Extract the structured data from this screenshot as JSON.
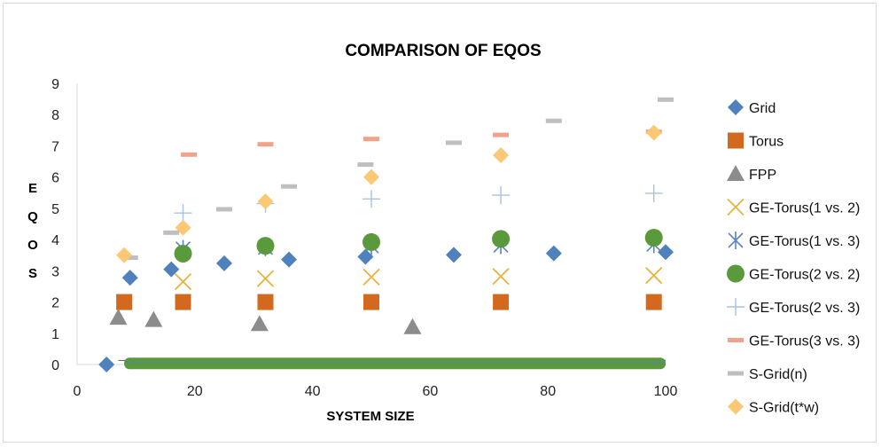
{
  "chart_data": {
    "type": "scatter",
    "title": "COMPARISON OF EQOS",
    "xlabel": "SYSTEM SIZE",
    "ylabel": "EQOS",
    "xlim": [
      0,
      100
    ],
    "ylim": [
      0,
      9
    ],
    "xticks": [
      "0",
      "20",
      "40",
      "60",
      "80",
      "100"
    ],
    "yticks": [
      "0",
      "1",
      "2",
      "3",
      "4",
      "5",
      "6",
      "7",
      "8",
      "9"
    ],
    "grid": false,
    "legend_position": "right",
    "series": [
      {
        "name": "Grid",
        "marker": "diamond",
        "color": "#4f81bd",
        "x": [
          5,
          9,
          16,
          25,
          36,
          49,
          64,
          81,
          100
        ],
        "y": [
          0,
          2.78,
          3.05,
          3.24,
          3.36,
          3.45,
          3.51,
          3.56,
          3.6
        ]
      },
      {
        "name": "Torus",
        "marker": "square",
        "color": "#d2691e",
        "x": [
          8,
          18,
          32,
          50,
          72,
          98
        ],
        "y": [
          2,
          2,
          2,
          2,
          2,
          2
        ]
      },
      {
        "name": "FPP",
        "marker": "triangle",
        "color": "#8c8c8c",
        "x": [
          7,
          13,
          31,
          57
        ],
        "y": [
          1.5,
          1.43,
          1.3,
          1.2
        ]
      },
      {
        "name": "GE-Torus(1 vs. 2)",
        "marker": "x",
        "color": "#e6b43c",
        "x": [
          18,
          32,
          50,
          72,
          98
        ],
        "y": [
          2.65,
          2.75,
          2.8,
          2.82,
          2.85
        ]
      },
      {
        "name": "GE-Torus(1 vs. 3)",
        "marker": "asterisk",
        "color": "#5a82c8",
        "x": [
          18,
          32,
          50,
          72,
          98
        ],
        "y": [
          3.7,
          3.75,
          3.8,
          3.82,
          3.85
        ]
      },
      {
        "name": "GE-Torus(2 vs. 2)",
        "marker": "circle",
        "color": "#5a9a3c",
        "x": [
          18,
          32,
          50,
          72,
          98
        ],
        "y": [
          3.55,
          3.8,
          3.92,
          4.02,
          4.06
        ]
      },
      {
        "name": "GE-Torus(2 vs. 3)",
        "marker": "plus",
        "color": "#a6c2e4",
        "x": [
          18,
          32,
          50,
          72,
          98
        ],
        "y": [
          4.85,
          5.15,
          5.3,
          5.42,
          5.48
        ]
      },
      {
        "name": "GE-Torus(3 vs. 3)",
        "marker": "dash",
        "color": "#f0a28a",
        "x": [
          19,
          32,
          50,
          72,
          98
        ],
        "y": [
          6.72,
          7.05,
          7.22,
          7.35,
          7.45
        ]
      },
      {
        "name": "S-Grid(n)",
        "marker": "dash",
        "color": "#bfbfbf",
        "x": [
          9,
          16,
          25,
          36,
          49,
          64,
          81,
          100
        ],
        "y": [
          3.42,
          4.22,
          4.97,
          5.7,
          6.4,
          7.1,
          7.8,
          8.48
        ]
      },
      {
        "name": "S-Grid(t*w)",
        "marker": "diamond",
        "color": "#fcc875",
        "x": [
          8,
          18,
          32,
          50,
          72,
          98
        ],
        "y": [
          3.5,
          4.38,
          5.22,
          6.0,
          6.7,
          7.42
        ]
      }
    ]
  }
}
